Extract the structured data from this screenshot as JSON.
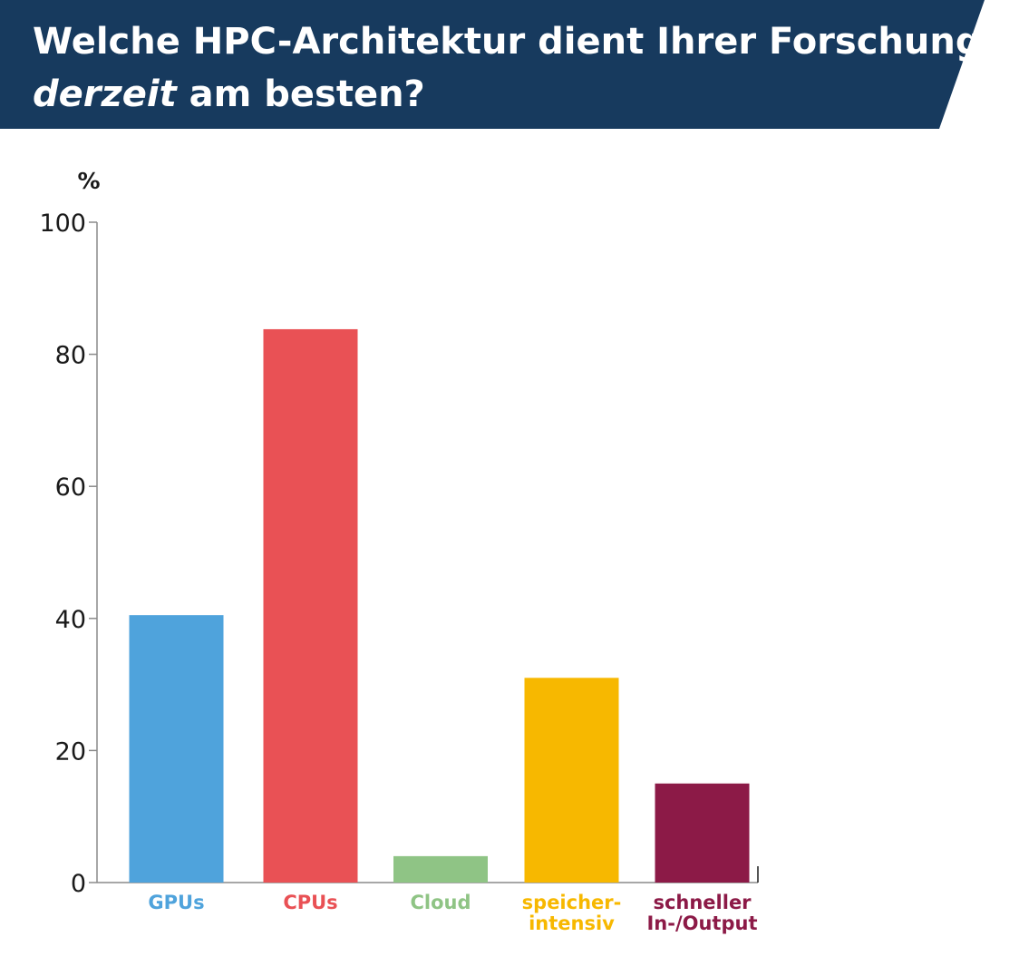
{
  "title": {
    "line1": "Welche HPC-Architektur dient Ihrer Forschung",
    "line2_emphasis": "derzeit",
    "line2_rest": " am besten?"
  },
  "colors": {
    "banner": "#173a5e",
    "axis": "#8a8a8a",
    "text": "#1a1a1a"
  },
  "chart_data": {
    "type": "bar",
    "unit_label": "%",
    "ylim": [
      0,
      100
    ],
    "yticks": [
      0,
      20,
      40,
      60,
      80,
      100
    ],
    "grid": false,
    "categories": [
      [
        "GPUs"
      ],
      [
        "CPUs"
      ],
      [
        "Cloud"
      ],
      [
        "speicher-",
        "intensiv"
      ],
      [
        "schneller",
        "In-/Output"
      ]
    ],
    "values": [
      40.5,
      83.8,
      4,
      31,
      15
    ],
    "bar_colors": [
      "#4fa3dc",
      "#e95155",
      "#8fc485",
      "#f7b800",
      "#8c1a47"
    ]
  }
}
